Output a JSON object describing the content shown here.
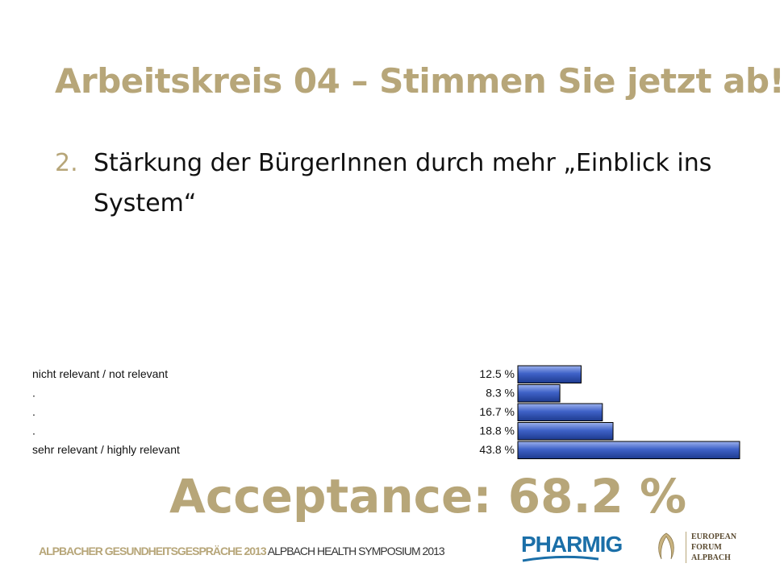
{
  "slide": {
    "title": "Arbeitskreis 04 – Stimmen Sie jetzt ab!",
    "item_number": "2.",
    "item_text": "Stärkung der BürgerInnen durch mehr „Einblick ins System“",
    "acceptance": "Acceptance: 68.2 %"
  },
  "footer": {
    "part1": "ALPBACHER GESUNDHEITSGESPRÄCHE 2013",
    "part2": " ALPBACH HEALTH SYMPOSIUM 2013",
    "pharmig": "PHARMIG",
    "efa_line1": "EUROPEAN",
    "efa_line2": "FORUM",
    "efa_line3": "ALPBACH"
  },
  "colors": {
    "accent": "#b7a679",
    "bar_fill": "#3f62c8",
    "bar_stroke": "#000000"
  },
  "chart_data": {
    "type": "bar",
    "orientation": "horizontal",
    "categories": [
      "nicht relevant / not relevant",
      ".",
      ".",
      ".",
      "sehr relevant / highly relevant"
    ],
    "values": [
      12.5,
      8.3,
      16.7,
      18.8,
      43.8
    ],
    "value_labels": [
      "12.5 %",
      "8.3 %",
      "16.7 %",
      "18.8 %",
      "43.8 %"
    ],
    "xlim": [
      0,
      43.8
    ],
    "grid": false
  }
}
